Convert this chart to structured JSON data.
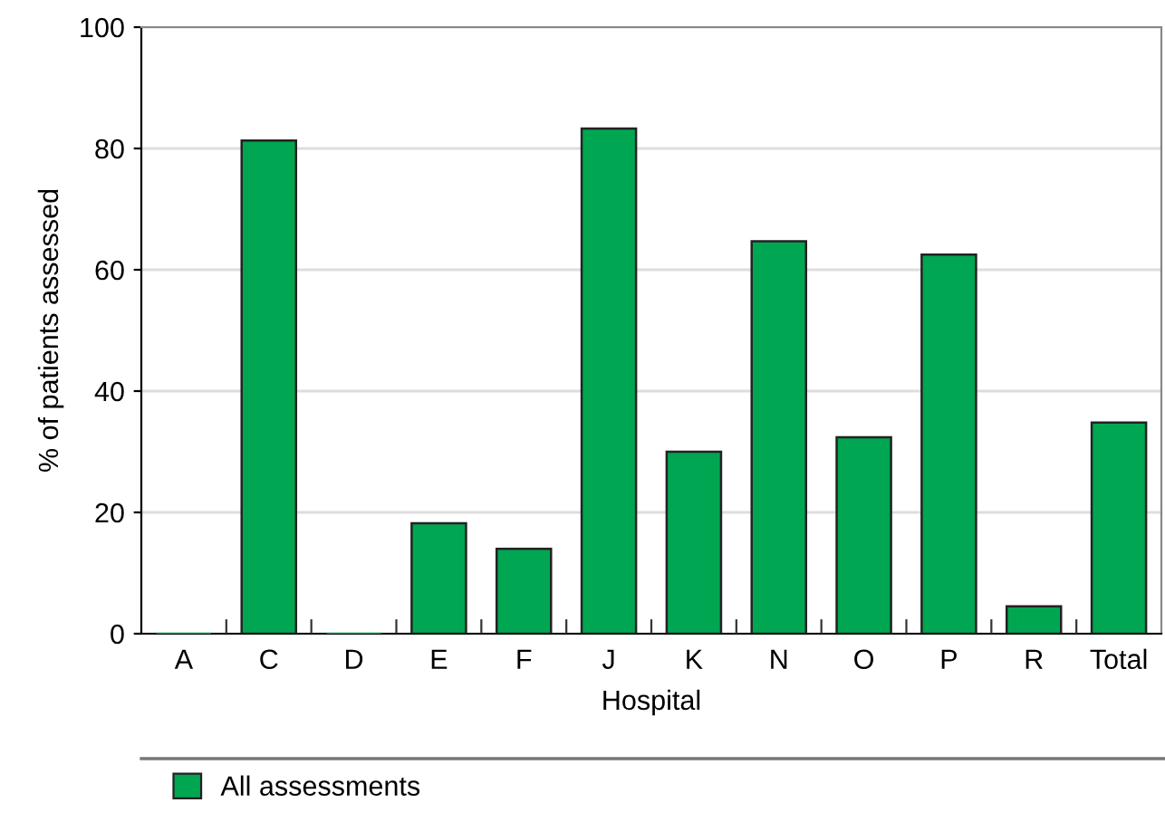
{
  "chart_data": {
    "type": "bar",
    "xlabel": "Hospital",
    "ylabel": "% of patients assessed",
    "categories": [
      "A",
      "C",
      "D",
      "E",
      "F",
      "J",
      "K",
      "N",
      "O",
      "P",
      "R",
      "Total"
    ],
    "series": [
      {
        "name": "All assessments",
        "color": "#00a651",
        "values": [
          0,
          81.3,
          0,
          18.2,
          14.0,
          83.3,
          30.0,
          64.7,
          32.4,
          62.5,
          4.5,
          34.8
        ]
      }
    ],
    "ylim": [
      0,
      100
    ],
    "yticks": [
      0,
      20,
      40,
      60,
      80,
      100
    ],
    "grid": "y",
    "legend": "bottom"
  }
}
